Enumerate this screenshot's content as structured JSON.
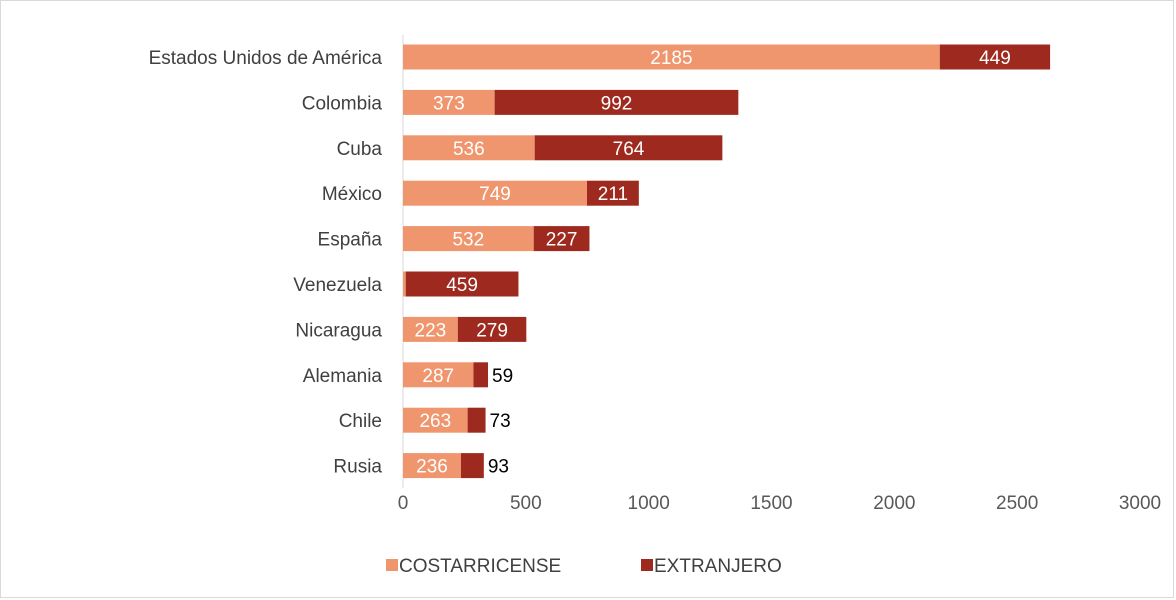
{
  "chart_data": {
    "type": "bar",
    "orientation": "horizontal",
    "stacked": true,
    "categories": [
      "Estados Unidos de América",
      "Colombia",
      "Cuba",
      "México",
      "España",
      "Venezuela",
      "Nicaragua",
      "Alemania",
      "Chile",
      "Rusia"
    ],
    "series": [
      {
        "name": "COSTARRICENSE",
        "color": "#f0966e",
        "values": [
          2185,
          373,
          536,
          749,
          532,
          11,
          223,
          287,
          263,
          236
        ]
      },
      {
        "name": "EXTRANJERO",
        "color": "#9e2a1f",
        "values": [
          449,
          992,
          764,
          211,
          227,
          459,
          279,
          59,
          73,
          93
        ]
      }
    ],
    "xlim": [
      0,
      3000
    ],
    "xticks": [
      0,
      500,
      1000,
      1500,
      2000,
      2500,
      3000
    ],
    "title": "",
    "xlabel": "",
    "ylabel": "",
    "grid": false,
    "legend_position": "bottom"
  }
}
